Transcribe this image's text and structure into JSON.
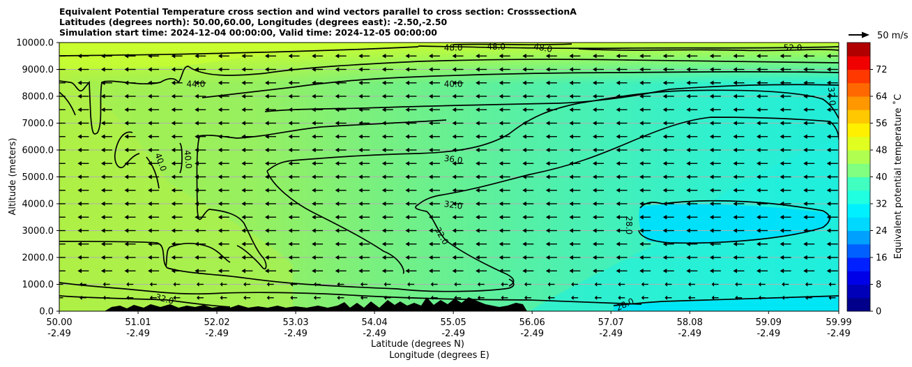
{
  "chart_data": {
    "type": "contour-cross-section",
    "title_lines": [
      "Equivalent Potential Temperature cross section and wind vectors parallel to cross section: CrosssectionA",
      "Latitudes (degrees north): 50.00,60.00, Longitudes (degrees east): -2.50,-2.50",
      "Simulation start time: 2024-12-04 00:00:00, Valid time: 2024-12-05 00:00:00"
    ],
    "ylabel": "Altitude (meters)",
    "xlabel_lat": "Latitude (degrees N)",
    "xlabel_lon": "Longitude (degrees E)",
    "ylim": [
      0,
      10000
    ],
    "xlim": [
      50.0,
      59.99
    ],
    "y_ticks": [
      "0.0",
      "1000.0",
      "2000.0",
      "3000.0",
      "4000.0",
      "5000.0",
      "6000.0",
      "7000.0",
      "8000.0",
      "9000.0",
      "10000.0"
    ],
    "y_tick_values": [
      0,
      1000,
      2000,
      3000,
      4000,
      5000,
      6000,
      7000,
      8000,
      9000,
      10000
    ],
    "x_tick_values": [
      50.0,
      51.01,
      52.02,
      53.03,
      54.04,
      55.05,
      56.06,
      57.07,
      58.08,
      59.09,
      59.99
    ],
    "x_tick_lat": [
      "50.00",
      "51.01",
      "52.02",
      "53.03",
      "54.04",
      "55.05",
      "56.06",
      "57.07",
      "58.08",
      "59.09",
      "59.99"
    ],
    "x_tick_lon": [
      "-2.49",
      "-2.49",
      "-2.49",
      "-2.49",
      "-2.49",
      "-2.49",
      "-2.49",
      "-2.49",
      "-2.49",
      "-2.49",
      "-2.49"
    ],
    "contour_labels": [
      {
        "text": "48.0",
        "lat": 55.05,
        "alt": 9800,
        "rot": 0
      },
      {
        "text": "48.0",
        "lat": 55.6,
        "alt": 9850,
        "rot": 0
      },
      {
        "text": "48.0",
        "lat": 56.2,
        "alt": 9800,
        "rot": 10
      },
      {
        "text": "52.0",
        "lat": 59.4,
        "alt": 9800,
        "rot": 0
      },
      {
        "text": "44.0",
        "lat": 51.75,
        "alt": 8450,
        "rot": 0
      },
      {
        "text": "40.0",
        "lat": 55.05,
        "alt": 8450,
        "rot": 0
      },
      {
        "text": "32.0",
        "lat": 59.9,
        "alt": 8000,
        "rot": 85
      },
      {
        "text": "40.0",
        "lat": 51.3,
        "alt": 5550,
        "rot": 70
      },
      {
        "text": "40.0",
        "lat": 51.65,
        "alt": 5650,
        "rot": 85
      },
      {
        "text": "36.0",
        "lat": 55.05,
        "alt": 5650,
        "rot": 8
      },
      {
        "text": "32.0",
        "lat": 55.05,
        "alt": 3950,
        "rot": 8
      },
      {
        "text": "32.0",
        "lat": 54.9,
        "alt": 2800,
        "rot": 60
      },
      {
        "text": "28.0",
        "lat": 57.3,
        "alt": 3200,
        "rot": 90
      },
      {
        "text": "32.0",
        "lat": 51.35,
        "alt": 450,
        "rot": 15
      },
      {
        "text": "28.0",
        "lat": 57.25,
        "alt": 250,
        "rot": -25
      }
    ],
    "wind_rows_alt": [
      500,
      1000,
      1500,
      2000,
      2500,
      3000,
      3500,
      4000,
      4500,
      5000,
      5500,
      6000,
      6500,
      7000,
      7500,
      8000,
      8500,
      9000,
      9500
    ],
    "wind_cols_lat": [
      50.0,
      50.3,
      50.6,
      50.9,
      51.2,
      51.5,
      51.8,
      52.1,
      52.4,
      52.7,
      53.0,
      53.3,
      53.6,
      53.9,
      54.2,
      54.5,
      54.8,
      55.1,
      55.4,
      55.7,
      56.0,
      56.3,
      56.6,
      56.9,
      57.2,
      57.5,
      57.8,
      58.1,
      58.4,
      58.7,
      59.0,
      59.3,
      59.6,
      59.9
    ],
    "wind_reference_label": "50 m/s",
    "colorbar": {
      "label": "Equivalent potential temperature $^\\circ$C",
      "label_display": "Equivalent potential temperature ˚C",
      "range": [
        0,
        80
      ],
      "ticks": [
        "0",
        "8",
        "16",
        "24",
        "32",
        "40",
        "48",
        "56",
        "64",
        "72"
      ],
      "tick_values": [
        0,
        8,
        16,
        24,
        32,
        40,
        48,
        56,
        64,
        72
      ]
    },
    "colors": {
      "terrain": "#000000",
      "contour": "#000000",
      "gridline": "#b0b0b0"
    }
  }
}
